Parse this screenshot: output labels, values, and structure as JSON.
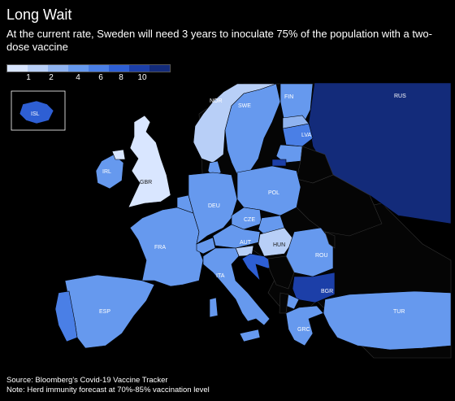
{
  "title": "Long Wait",
  "subtitle": "At the current rate, Sweden will need 3 years to inoculate 75% of the population with a two-dose vaccine",
  "legend": {
    "ticks": [
      "1",
      "2",
      "4",
      "6",
      "8",
      "10"
    ],
    "colors": [
      "#d9e6ff",
      "#b8cff7",
      "#8fb3f0",
      "#6699ee",
      "#4a7fe6",
      "#2e5fd4",
      "#1c3fa8",
      "#132b7a"
    ]
  },
  "countries": [
    {
      "code": "RUS",
      "years": 12
    },
    {
      "code": "NOR",
      "years": 1.5
    },
    {
      "code": "SWE",
      "years": 3
    },
    {
      "code": "FIN",
      "years": 3
    },
    {
      "code": "LVA",
      "years": 8
    },
    {
      "code": "ISL",
      "years": 6
    },
    {
      "code": "GBR",
      "years": 0.5
    },
    {
      "code": "IRL",
      "years": 4
    },
    {
      "code": "DEU",
      "years": 3
    },
    {
      "code": "POL",
      "years": 3
    },
    {
      "code": "CZE",
      "years": 3
    },
    {
      "code": "AUT",
      "years": 3
    },
    {
      "code": "HUN",
      "years": 1.5
    },
    {
      "code": "FRA",
      "years": 3
    },
    {
      "code": "ROU",
      "years": 3
    },
    {
      "code": "ITA",
      "years": 3
    },
    {
      "code": "BGR",
      "years": 10
    },
    {
      "code": "ESP",
      "years": 3
    },
    {
      "code": "GRC",
      "years": 3
    },
    {
      "code": "TUR",
      "years": 3
    }
  ],
  "source": "Source: Bloomberg's Covid-19 Vaccine Tracker",
  "note": "Note: Herd immunity forecast at 70%-85% vaccination level"
}
